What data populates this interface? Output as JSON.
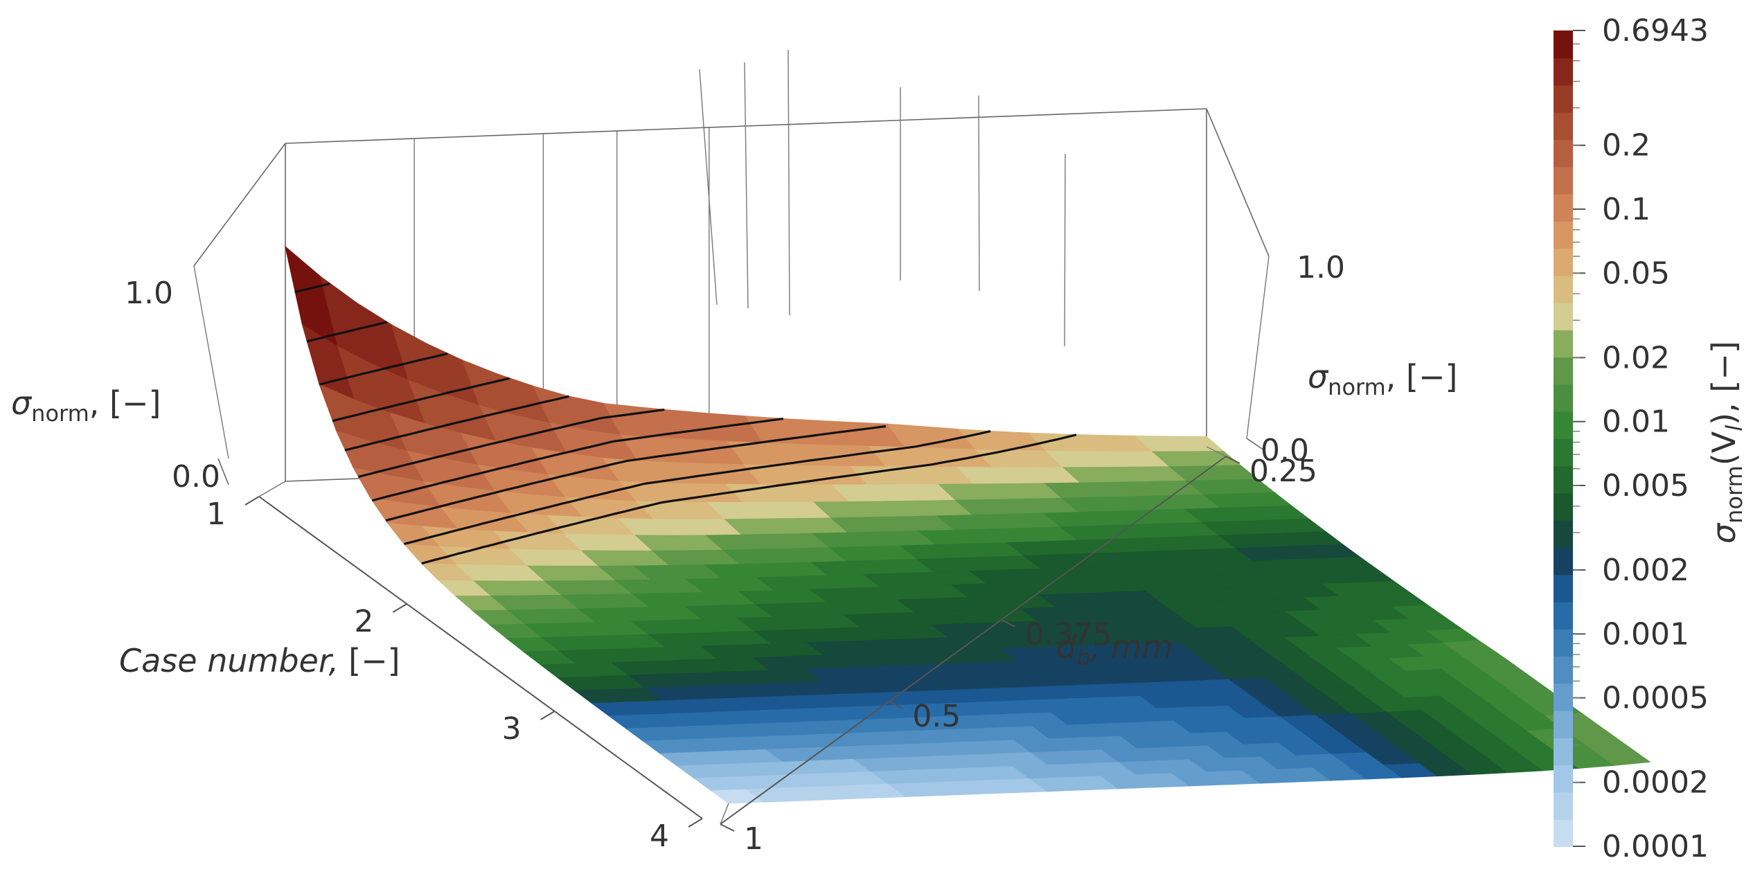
{
  "chart_data": {
    "type": "3d-surface",
    "surface_quantity": "σnorm(Vl)",
    "case_axis": {
      "label_text": "Case number,",
      "label_unit": "[−]",
      "ticks": [
        "1",
        "2",
        "3",
        "4"
      ]
    },
    "db_axis": {
      "label_main": "d",
      "label_sub": "b",
      "label_unit": ", mm",
      "ticks": [
        "1",
        "0.5",
        "0.375",
        "0.25"
      ],
      "values_mm": [
        1,
        0.5,
        0.375,
        0.25
      ]
    },
    "z_axes": [
      {
        "label_main": "σ",
        "label_sub": "norm",
        "label_unit": ", [−]",
        "ticks": [
          "1.0",
          "0.0"
        ],
        "range": [
          0,
          1
        ]
      },
      {
        "label_main": "σ",
        "label_sub": "norm",
        "label_unit": ", [−]",
        "ticks": [
          "1.0",
          "0.0"
        ],
        "range": [
          0,
          1
        ]
      }
    ],
    "colorbar": {
      "label_main": "σ",
      "label_sub": "norm",
      "label_mid": "(V",
      "label_sub2": "l",
      "label_end": "), [−]",
      "scale": "log",
      "min": 0.0001,
      "max": 0.6943,
      "ticks": [
        "0.6943",
        "0.2",
        "0.1",
        "0.05",
        "0.02",
        "0.01",
        "0.005",
        "0.002",
        "0.001",
        "0.0005",
        "0.0002",
        "0.0001"
      ],
      "tick_values": [
        0.6943,
        0.2,
        0.1,
        0.05,
        0.02,
        0.01,
        0.005,
        0.002,
        0.001,
        0.0005,
        0.0002,
        0.0001
      ]
    },
    "grid": {
      "cases": [
        1,
        2,
        3,
        4
      ],
      "db_mm": [
        1,
        0.5,
        0.375,
        0.25
      ],
      "values": [
        [
          0.6943,
          0.2,
          0.1,
          0.03
        ],
        [
          0.04,
          0.01,
          0.004,
          0.003
        ],
        [
          0.003,
          0.002,
          0.002,
          0.015
        ],
        [
          0.0001,
          0.0002,
          0.0008,
          0.02
        ]
      ]
    },
    "contour_levels": [
      0.05,
      0.07,
      0.1,
      0.13,
      0.17,
      0.22,
      0.28,
      0.36,
      0.46,
      0.58
    ]
  }
}
